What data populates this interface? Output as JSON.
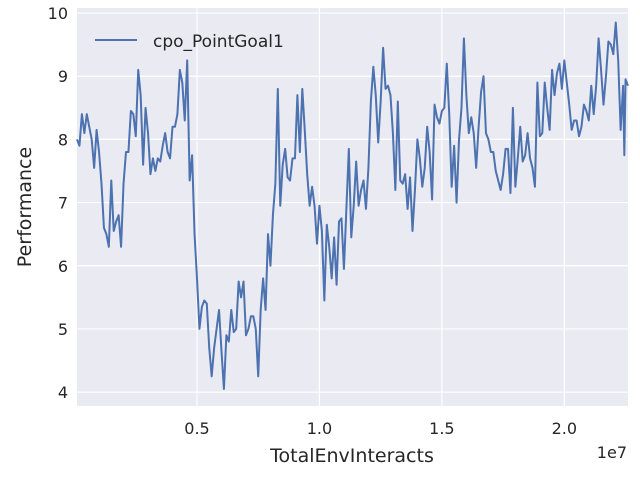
{
  "chart_data": {
    "type": "line",
    "xlabel": "TotalEnvInteracts",
    "ylabel": "Performance",
    "x_offset_label": "1e7",
    "xlim": [
      0.01,
      2.26
    ],
    "ylim": [
      3.78,
      10.08
    ],
    "x_ticks": [
      0.5,
      1.0,
      1.5,
      2.0
    ],
    "x_tick_labels": [
      "0.5",
      "1.0",
      "1.5",
      "2.0"
    ],
    "y_ticks": [
      4,
      5,
      6,
      7,
      8,
      9,
      10
    ],
    "y_tick_labels": [
      "4",
      "5",
      "6",
      "7",
      "8",
      "9",
      "10"
    ],
    "grid": true,
    "legend_position": "top-left",
    "colors": {
      "background": "#eaeaf2",
      "grid": "#ffffff",
      "series": "#4c72b0"
    },
    "series": [
      {
        "name": "cpo_PointGoal1",
        "points": [
          [
            0.01,
            8.0
          ],
          [
            0.02,
            7.9
          ],
          [
            0.03,
            8.4
          ],
          [
            0.04,
            8.1
          ],
          [
            0.05,
            8.4
          ],
          [
            0.06,
            8.2
          ],
          [
            0.07,
            8.0
          ],
          [
            0.08,
            7.55
          ],
          [
            0.09,
            8.15
          ],
          [
            0.1,
            7.8
          ],
          [
            0.11,
            7.3
          ],
          [
            0.12,
            6.6
          ],
          [
            0.13,
            6.5
          ],
          [
            0.14,
            6.3
          ],
          [
            0.15,
            7.35
          ],
          [
            0.16,
            6.55
          ],
          [
            0.17,
            6.7
          ],
          [
            0.18,
            6.8
          ],
          [
            0.19,
            6.3
          ],
          [
            0.2,
            7.3
          ],
          [
            0.21,
            7.8
          ],
          [
            0.22,
            7.8
          ],
          [
            0.23,
            8.45
          ],
          [
            0.24,
            8.4
          ],
          [
            0.25,
            8.05
          ],
          [
            0.26,
            9.1
          ],
          [
            0.27,
            8.7
          ],
          [
            0.28,
            7.6
          ],
          [
            0.29,
            8.5
          ],
          [
            0.3,
            8.1
          ],
          [
            0.31,
            7.45
          ],
          [
            0.32,
            7.7
          ],
          [
            0.33,
            7.5
          ],
          [
            0.34,
            7.7
          ],
          [
            0.35,
            7.65
          ],
          [
            0.36,
            7.9
          ],
          [
            0.37,
            8.1
          ],
          [
            0.38,
            7.8
          ],
          [
            0.39,
            7.7
          ],
          [
            0.4,
            8.2
          ],
          [
            0.41,
            8.2
          ],
          [
            0.42,
            8.4
          ],
          [
            0.43,
            9.1
          ],
          [
            0.44,
            8.9
          ],
          [
            0.45,
            8.3
          ],
          [
            0.46,
            9.25
          ],
          [
            0.47,
            7.35
          ],
          [
            0.48,
            7.75
          ],
          [
            0.49,
            6.5
          ],
          [
            0.5,
            5.8
          ],
          [
            0.51,
            5.0
          ],
          [
            0.52,
            5.35
          ],
          [
            0.53,
            5.45
          ],
          [
            0.54,
            5.4
          ],
          [
            0.55,
            4.7
          ],
          [
            0.56,
            4.25
          ],
          [
            0.57,
            4.7
          ],
          [
            0.58,
            5.0
          ],
          [
            0.59,
            5.3
          ],
          [
            0.6,
            4.65
          ],
          [
            0.61,
            4.05
          ],
          [
            0.62,
            4.9
          ],
          [
            0.63,
            4.8
          ],
          [
            0.64,
            5.3
          ],
          [
            0.65,
            4.95
          ],
          [
            0.66,
            5.0
          ],
          [
            0.67,
            5.75
          ],
          [
            0.68,
            5.5
          ],
          [
            0.69,
            5.75
          ],
          [
            0.7,
            4.9
          ],
          [
            0.71,
            5.0
          ],
          [
            0.72,
            5.2
          ],
          [
            0.73,
            5.2
          ],
          [
            0.74,
            5.0
          ],
          [
            0.75,
            4.25
          ],
          [
            0.76,
            5.3
          ],
          [
            0.77,
            5.8
          ],
          [
            0.78,
            5.3
          ],
          [
            0.79,
            6.5
          ],
          [
            0.8,
            6.0
          ],
          [
            0.81,
            6.8
          ],
          [
            0.82,
            7.3
          ],
          [
            0.83,
            8.8
          ],
          [
            0.84,
            6.95
          ],
          [
            0.85,
            7.6
          ],
          [
            0.86,
            7.85
          ],
          [
            0.87,
            7.4
          ],
          [
            0.88,
            7.35
          ],
          [
            0.89,
            7.7
          ],
          [
            0.9,
            7.7
          ],
          [
            0.91,
            8.7
          ],
          [
            0.92,
            7.8
          ],
          [
            0.93,
            8.8
          ],
          [
            0.94,
            8.15
          ],
          [
            0.95,
            7.45
          ],
          [
            0.96,
            6.95
          ],
          [
            0.97,
            7.25
          ],
          [
            0.98,
            6.95
          ],
          [
            0.99,
            6.35
          ],
          [
            1.0,
            6.95
          ],
          [
            1.01,
            6.55
          ],
          [
            1.02,
            5.45
          ],
          [
            1.03,
            6.65
          ],
          [
            1.04,
            6.3
          ],
          [
            1.05,
            5.8
          ],
          [
            1.06,
            6.45
          ],
          [
            1.07,
            5.7
          ],
          [
            1.08,
            6.7
          ],
          [
            1.09,
            6.75
          ],
          [
            1.1,
            5.95
          ],
          [
            1.11,
            6.9
          ],
          [
            1.12,
            7.85
          ],
          [
            1.13,
            6.45
          ],
          [
            1.14,
            6.95
          ],
          [
            1.15,
            7.65
          ],
          [
            1.16,
            6.95
          ],
          [
            1.17,
            7.2
          ],
          [
            1.18,
            7.35
          ],
          [
            1.19,
            6.9
          ],
          [
            1.2,
            7.55
          ],
          [
            1.21,
            8.6
          ],
          [
            1.22,
            9.15
          ],
          [
            1.23,
            8.7
          ],
          [
            1.24,
            7.95
          ],
          [
            1.25,
            8.6
          ],
          [
            1.26,
            9.45
          ],
          [
            1.27,
            8.8
          ],
          [
            1.28,
            8.85
          ],
          [
            1.29,
            8.7
          ],
          [
            1.3,
            8.1
          ],
          [
            1.31,
            7.2
          ],
          [
            1.32,
            8.6
          ],
          [
            1.33,
            7.35
          ],
          [
            1.34,
            7.3
          ],
          [
            1.35,
            7.45
          ],
          [
            1.36,
            6.9
          ],
          [
            1.37,
            7.4
          ],
          [
            1.38,
            6.55
          ],
          [
            1.39,
            7.2
          ],
          [
            1.4,
            8.0
          ],
          [
            1.41,
            7.7
          ],
          [
            1.42,
            7.25
          ],
          [
            1.43,
            7.55
          ],
          [
            1.44,
            8.2
          ],
          [
            1.45,
            7.8
          ],
          [
            1.46,
            7.05
          ],
          [
            1.47,
            8.55
          ],
          [
            1.48,
            8.35
          ],
          [
            1.49,
            8.25
          ],
          [
            1.5,
            8.45
          ],
          [
            1.51,
            8.5
          ],
          [
            1.52,
            9.2
          ],
          [
            1.53,
            8.4
          ],
          [
            1.54,
            7.25
          ],
          [
            1.55,
            7.9
          ],
          [
            1.56,
            7.0
          ],
          [
            1.57,
            8.0
          ],
          [
            1.58,
            8.5
          ],
          [
            1.59,
            9.6
          ],
          [
            1.6,
            8.7
          ],
          [
            1.61,
            8.1
          ],
          [
            1.62,
            8.35
          ],
          [
            1.63,
            8.1
          ],
          [
            1.64,
            7.55
          ],
          [
            1.65,
            8.2
          ],
          [
            1.66,
            8.75
          ],
          [
            1.67,
            9.0
          ],
          [
            1.68,
            8.1
          ],
          [
            1.69,
            8.0
          ],
          [
            1.7,
            7.8
          ],
          [
            1.71,
            7.8
          ],
          [
            1.72,
            7.5
          ],
          [
            1.73,
            7.35
          ],
          [
            1.74,
            7.2
          ],
          [
            1.75,
            7.45
          ],
          [
            1.76,
            7.85
          ],
          [
            1.77,
            7.85
          ],
          [
            1.78,
            7.15
          ],
          [
            1.79,
            8.5
          ],
          [
            1.8,
            7.25
          ],
          [
            1.81,
            7.7
          ],
          [
            1.82,
            8.2
          ],
          [
            1.83,
            7.65
          ],
          [
            1.84,
            7.75
          ],
          [
            1.85,
            8.1
          ],
          [
            1.86,
            7.7
          ],
          [
            1.87,
            7.55
          ],
          [
            1.88,
            7.25
          ],
          [
            1.89,
            8.9
          ],
          [
            1.9,
            8.05
          ],
          [
            1.91,
            8.1
          ],
          [
            1.92,
            8.9
          ],
          [
            1.93,
            8.5
          ],
          [
            1.94,
            8.15
          ],
          [
            1.95,
            9.1
          ],
          [
            1.96,
            8.7
          ],
          [
            1.97,
            9.05
          ],
          [
            1.98,
            9.2
          ],
          [
            1.99,
            8.8
          ],
          [
            2.0,
            9.25
          ],
          [
            2.01,
            8.9
          ],
          [
            2.02,
            8.55
          ],
          [
            2.03,
            8.15
          ],
          [
            2.04,
            8.3
          ],
          [
            2.05,
            8.3
          ],
          [
            2.06,
            8.05
          ],
          [
            2.07,
            8.2
          ],
          [
            2.08,
            8.55
          ],
          [
            2.09,
            8.45
          ],
          [
            2.1,
            8.3
          ],
          [
            2.11,
            8.85
          ],
          [
            2.12,
            8.4
          ],
          [
            2.13,
            8.85
          ],
          [
            2.14,
            9.6
          ],
          [
            2.15,
            9.1
          ],
          [
            2.16,
            8.55
          ],
          [
            2.17,
            9.0
          ],
          [
            2.18,
            9.55
          ],
          [
            2.19,
            9.5
          ],
          [
            2.2,
            9.35
          ],
          [
            2.21,
            9.85
          ],
          [
            2.22,
            9.25
          ],
          [
            2.23,
            8.15
          ],
          [
            2.24,
            8.85
          ],
          [
            2.245,
            7.75
          ],
          [
            2.25,
            8.95
          ],
          [
            2.26,
            8.85
          ]
        ]
      }
    ]
  }
}
